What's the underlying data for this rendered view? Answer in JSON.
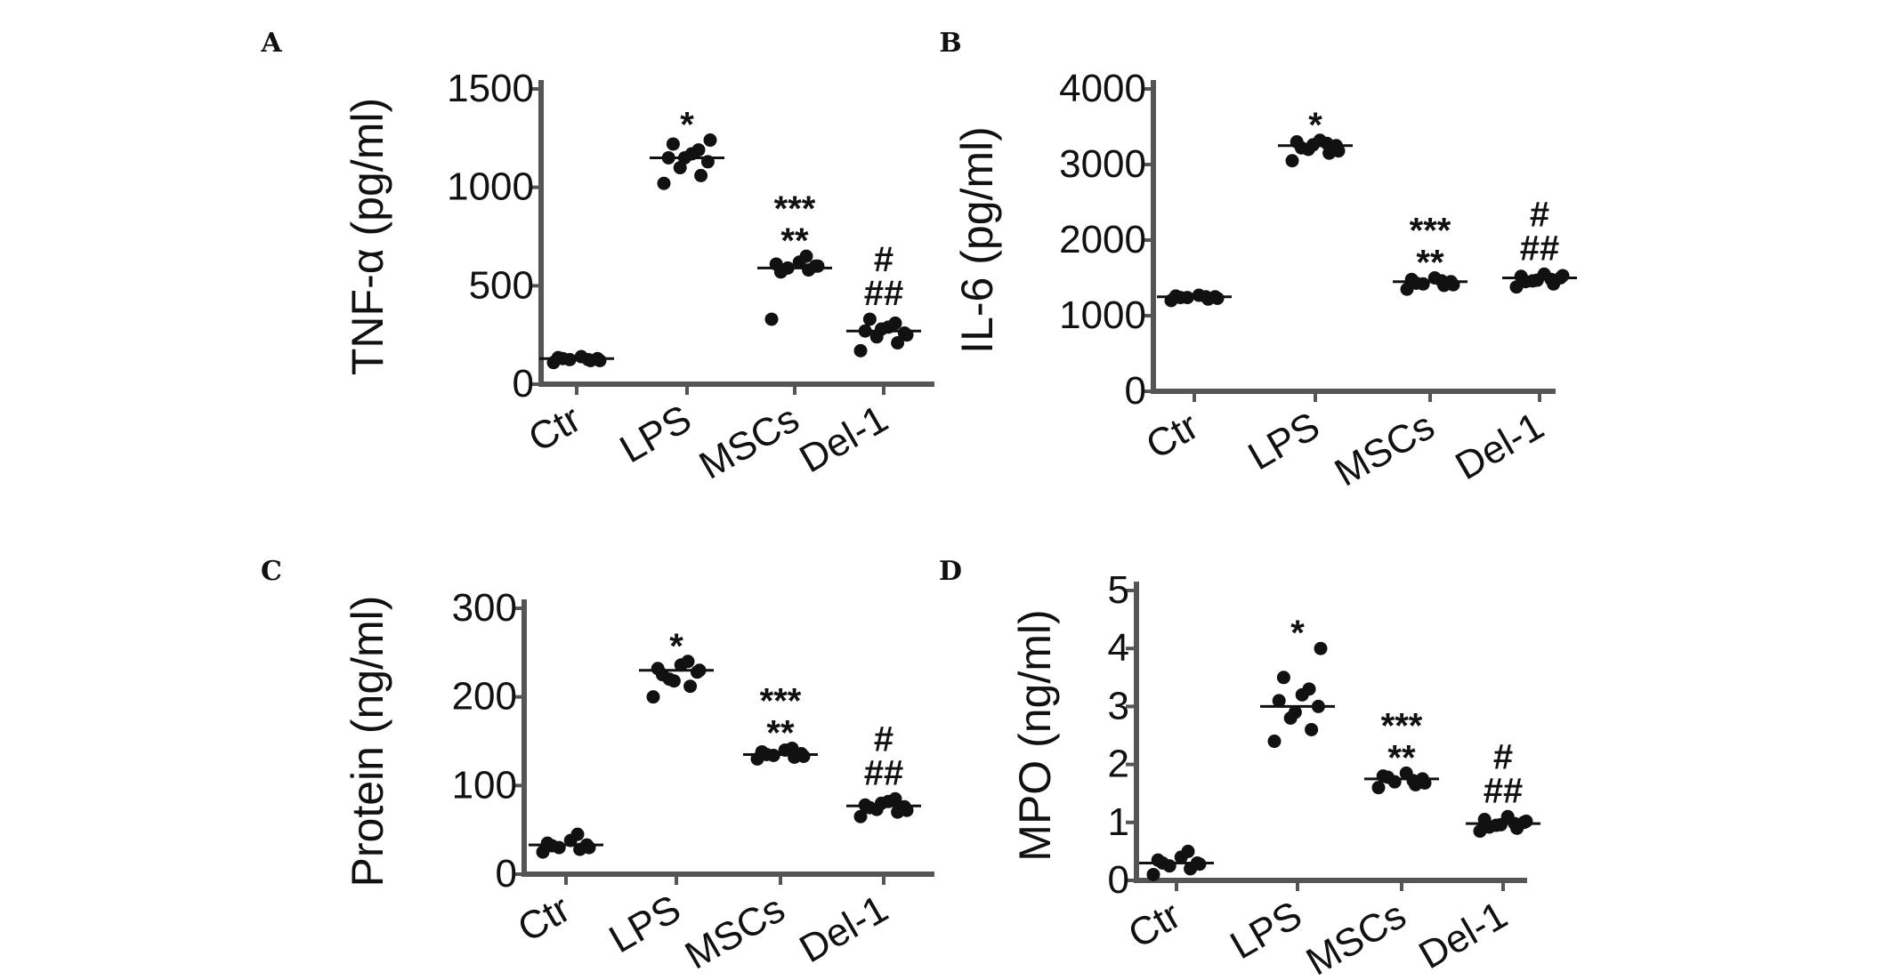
{
  "chart_data": [
    {
      "panel": "A",
      "type": "scatter",
      "ylabel": "TNF-α (pg/ml)",
      "categories": [
        "Ctr",
        "LPS",
        "MSCs",
        "Del-1"
      ],
      "ylim": [
        0,
        1500
      ],
      "yticks": [
        0,
        500,
        1000,
        1500
      ],
      "means": [
        130,
        1150,
        590,
        270
      ],
      "points": [
        [
          110,
          120,
          125,
          130,
          135,
          140,
          125,
          130,
          120
        ],
        [
          1020,
          1060,
          1100,
          1130,
          1150,
          1170,
          1190,
          1220,
          1240,
          1150
        ],
        [
          330,
          580,
          590,
          600,
          610,
          620,
          650,
          570,
          600
        ],
        [
          170,
          210,
          240,
          260,
          270,
          290,
          310,
          330,
          250,
          280
        ]
      ],
      "annotations": [
        "",
        "*",
        "***\n**",
        "#\n##"
      ]
    },
    {
      "panel": "B",
      "type": "scatter",
      "ylabel": "IL-6 (pg/ml)",
      "categories": [
        "Ctr",
        "LPS",
        "MSCs",
        "Del-1"
      ],
      "ylim": [
        0,
        4000
      ],
      "yticks": [
        0,
        1000,
        2000,
        3000,
        4000
      ],
      "means": [
        1250,
        3250,
        1450,
        1500
      ],
      "points": [
        [
          1200,
          1220,
          1240,
          1250,
          1260,
          1270,
          1250,
          1240,
          1230
        ],
        [
          3050,
          3150,
          3200,
          3250,
          3300,
          3320,
          3280,
          3220,
          3180,
          3260
        ],
        [
          1350,
          1400,
          1420,
          1450,
          1480,
          1500,
          1460,
          1430,
          1410
        ],
        [
          1380,
          1420,
          1460,
          1500,
          1520,
          1550,
          1480,
          1450,
          1530,
          1470
        ]
      ],
      "annotations": [
        "",
        "*",
        "***\n**",
        "#\n##"
      ]
    },
    {
      "panel": "C",
      "type": "scatter",
      "ylabel": "Protein (ng/ml)",
      "categories": [
        "Ctr",
        "LPS",
        "MSCs",
        "Del-1"
      ],
      "ylim": [
        0,
        300
      ],
      "yticks": [
        0,
        100,
        200,
        300
      ],
      "means": [
        33,
        230,
        135,
        77
      ],
      "points": [
        [
          25,
          28,
          30,
          33,
          35,
          38,
          45,
          32,
          30
        ],
        [
          200,
          212,
          220,
          228,
          232,
          236,
          240,
          225,
          230,
          218
        ],
        [
          130,
          132,
          134,
          136,
          138,
          140,
          142,
          135,
          133
        ],
        [
          65,
          70,
          73,
          76,
          78,
          82,
          85,
          75,
          72,
          80
        ]
      ],
      "annotations": [
        "",
        "*",
        "***\n**",
        "#\n##"
      ]
    },
    {
      "panel": "D",
      "type": "scatter",
      "ylabel": "MPO (ng/ml)",
      "categories": [
        "Ctr",
        "LPS",
        "MSCs",
        "Del-1"
      ],
      "ylim": [
        0,
        5
      ],
      "yticks": [
        0,
        1,
        2,
        3,
        4,
        5
      ],
      "means": [
        0.3,
        3.0,
        1.75,
        0.98
      ],
      "points": [
        [
          0.1,
          0.2,
          0.25,
          0.3,
          0.35,
          0.4,
          0.5,
          0.3,
          0.28
        ],
        [
          2.4,
          2.6,
          2.8,
          3.0,
          3.1,
          3.2,
          3.3,
          3.5,
          4.0,
          2.9
        ],
        [
          1.6,
          1.65,
          1.7,
          1.75,
          1.8,
          1.85,
          1.72,
          1.78,
          1.68
        ],
        [
          0.85,
          0.9,
          0.95,
          1.0,
          1.05,
          1.1,
          0.98,
          0.92,
          1.02,
          0.96
        ]
      ],
      "annotations": [
        "",
        "*",
        "***\n**",
        "#\n##"
      ]
    }
  ]
}
